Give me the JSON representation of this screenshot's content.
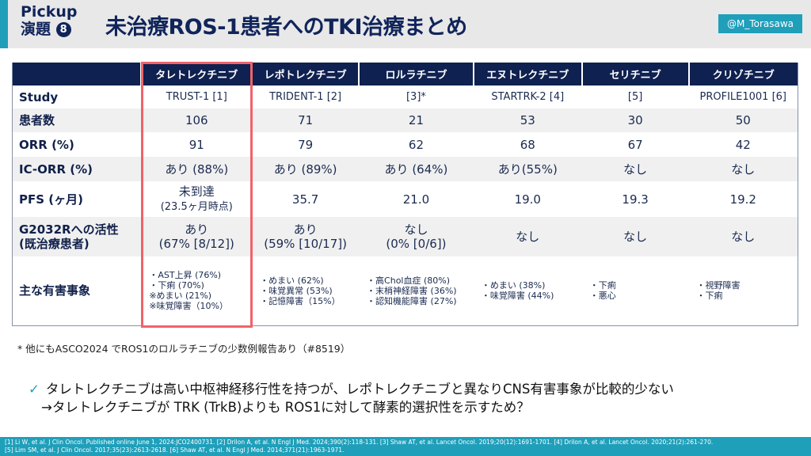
{
  "header": {
    "pickup": "Pickup",
    "enshu": "演題",
    "num": "8",
    "title": "未治療ROS-1患者へのTKI治療まとめ",
    "handle": "@M_Torasawa"
  },
  "table": {
    "columns": [
      "",
      "タレトレクチニブ",
      "レポトレクチニブ",
      "ロルラチニブ",
      "エヌトレクチニブ",
      "セリチニブ",
      "クリゾチニブ"
    ],
    "rows": [
      {
        "label": "Study",
        "cells": [
          "TRUST-1 [1]",
          "TRIDENT-1 [2]",
          "[3]*",
          "STARTRK-2 [4]",
          "[5]",
          "PROFILE1001 [6]"
        ]
      },
      {
        "label": "患者数",
        "cells": [
          "106",
          "71",
          "21",
          "53",
          "30",
          "50"
        ]
      },
      {
        "label": "ORR (%)",
        "cells": [
          "91",
          "79",
          "62",
          "68",
          "67",
          "42"
        ]
      },
      {
        "label": "IC-ORR (%)",
        "cells": [
          "あり (88%)",
          "あり (89%)",
          "あり (64%)",
          "あり(55%)",
          "なし",
          "なし"
        ]
      },
      {
        "label": "PFS (ヶ月)",
        "cells": [
          "未到達",
          "35.7",
          "21.0",
          "19.0",
          "19.3",
          "19.2"
        ],
        "sub0": "(23.5ヶ月時点)"
      },
      {
        "label": "G2032Rへの活性",
        "label2": "(既治療患者)",
        "cells": [
          "あり",
          "あり",
          "なし",
          "なし",
          "なし",
          "なし"
        ],
        "subs": [
          "(67% [8/12])",
          "(59% [10/17])",
          "(0% [0/6])"
        ]
      },
      {
        "label": "主な有害事象",
        "ae": [
          [
            "・AST上昇 (76%)",
            "・下痢 (70%)",
            "※めまい (21%)",
            "※味覚障害（10%）"
          ],
          [
            "・めまい (62%)",
            "・味覚異常 (53%)",
            "・記憶障害（15%）"
          ],
          [
            "・高Chol血症 (80%)",
            "・末梢神経障害 (36%)",
            "・認知機能障害 (27%)"
          ],
          [
            "・めまい (38%)",
            "・味覚障害 (44%)"
          ],
          [
            "・下痢",
            "・悪心"
          ],
          [
            "・視野障害",
            "・下痢"
          ]
        ]
      }
    ]
  },
  "note": "* 他にもASCO2024 でROS1のロルラチニブの少数例報告あり（#8519）",
  "message": {
    "check": "✓",
    "line1": "タレトレクチニブは高い中枢神経移行性を持つが、レポトレクチニブと異なりCNS有害事象が比較的少ない",
    "line2": "→タレトレクチニブが TRK (TrkB)よりも ROS1に対して酵素的選択性を示すため？"
  },
  "footer": {
    "line1": "[1] Li W, et al. J Clin Oncol. Published online June 1, 2024:JCO2400731. [2] Drilon A, et al. N Engl J Med. 2024;390(2):118-131. [3] Shaw AT, et al. Lancet Oncol. 2019;20(12):1691-1701. [4] Drilon A, et al. Lancet Oncol. 2020;21(2):261-270.",
    "line2": "[5] Lim SM, et al. J Clin Oncol. 2017;35(23):2613-2618. [6] Shaw AT, et al. N Engl J Med. 2014;371(21):1963-1971."
  }
}
